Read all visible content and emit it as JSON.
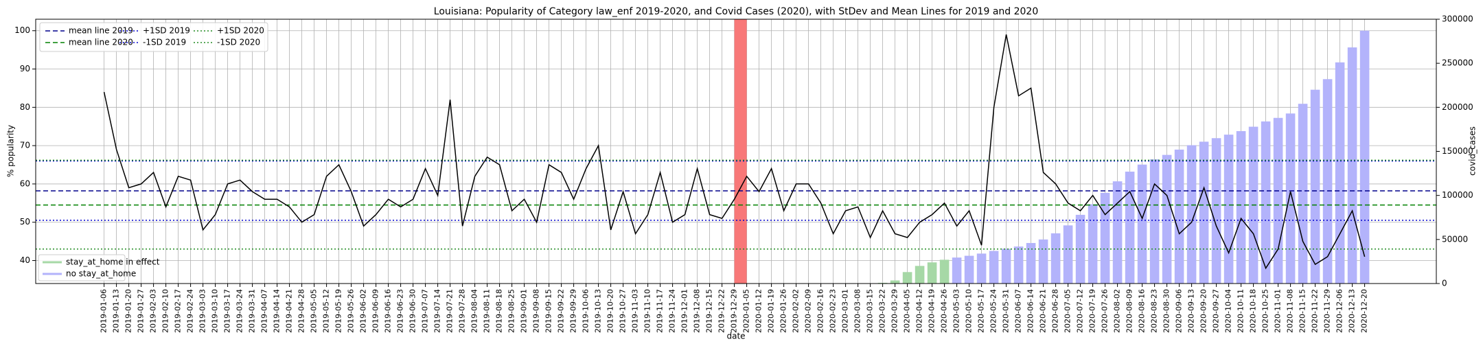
{
  "chart_data": {
    "type": "bar_line",
    "title": "Louisiana: Popularity of Category law_enf 2019-2020, and Covid Cases (2020), with StDev and Mean Lines for 2019 and 2020",
    "xlabel": "date",
    "ylabel": "% popularity",
    "y2label": "covid_cases",
    "grid": true,
    "categories": [
      "2019-01-06",
      "2019-01-13",
      "2019-01-20",
      "2019-01-27",
      "2019-02-03",
      "2019-02-10",
      "2019-02-17",
      "2019-02-24",
      "2019-03-03",
      "2019-03-10",
      "2019-03-17",
      "2019-03-24",
      "2019-03-31",
      "2019-04-07",
      "2019-04-14",
      "2019-04-21",
      "2019-04-28",
      "2019-05-05",
      "2019-05-12",
      "2019-05-19",
      "2019-05-26",
      "2019-06-02",
      "2019-06-09",
      "2019-06-16",
      "2019-06-23",
      "2019-06-30",
      "2019-07-07",
      "2019-07-14",
      "2019-07-21",
      "2019-07-28",
      "2019-08-04",
      "2019-08-11",
      "2019-08-18",
      "2019-08-25",
      "2019-09-01",
      "2019-09-08",
      "2019-09-15",
      "2019-09-22",
      "2019-09-29",
      "2019-10-06",
      "2019-10-13",
      "2019-10-20",
      "2019-10-27",
      "2019-11-03",
      "2019-11-10",
      "2019-11-17",
      "2019-11-24",
      "2019-12-01",
      "2019-12-08",
      "2019-12-15",
      "2019-12-22",
      "2019-12-29",
      "2020-01-05",
      "2020-01-12",
      "2020-01-19",
      "2020-01-26",
      "2020-02-02",
      "2020-02-09",
      "2020-02-16",
      "2020-02-23",
      "2020-03-01",
      "2020-03-08",
      "2020-03-15",
      "2020-03-22",
      "2020-03-29",
      "2020-04-05",
      "2020-04-12",
      "2020-04-19",
      "2020-04-26",
      "2020-05-03",
      "2020-05-10",
      "2020-05-17",
      "2020-05-24",
      "2020-05-31",
      "2020-06-07",
      "2020-06-14",
      "2020-06-21",
      "2020-06-28",
      "2020-07-05",
      "2020-07-12",
      "2020-07-19",
      "2020-07-26",
      "2020-08-02",
      "2020-08-09",
      "2020-08-16",
      "2020-08-23",
      "2020-08-30",
      "2020-09-06",
      "2020-09-13",
      "2020-09-20",
      "2020-09-27",
      "2020-10-04",
      "2020-10-11",
      "2020-10-18",
      "2020-10-25",
      "2020-11-01",
      "2020-11-08",
      "2020-11-15",
      "2020-11-22",
      "2020-11-29",
      "2020-12-06",
      "2020-12-13",
      "2020-12-20"
    ],
    "line": {
      "color": "#000000",
      "values": [
        84,
        69,
        59,
        60,
        63,
        54,
        62,
        61,
        48,
        52,
        60,
        61,
        58,
        56,
        56,
        54,
        50,
        52,
        62,
        65,
        58,
        49,
        52,
        56,
        54,
        56,
        64,
        57,
        82,
        49,
        62,
        67,
        65,
        53,
        56,
        50,
        65,
        63,
        56,
        64,
        70,
        48,
        58,
        47,
        52,
        63,
        50,
        52,
        64,
        52,
        51,
        56,
        62,
        58,
        64,
        53,
        60,
        60,
        55,
        47,
        53,
        54,
        46,
        53,
        47,
        46,
        50,
        52,
        55,
        49,
        53,
        44,
        80,
        99,
        83,
        85,
        63,
        60,
        55,
        53,
        57,
        52,
        55,
        58,
        51,
        60,
        57,
        47,
        50,
        59,
        49,
        42,
        51,
        47,
        38,
        43,
        58,
        45,
        39,
        41,
        47,
        53,
        41
      ]
    },
    "series": [
      {
        "name": "stay_at_home in effect",
        "color": "#a6d8a6",
        "axis": "y2",
        "values": [
          null,
          null,
          null,
          null,
          null,
          null,
          null,
          null,
          null,
          null,
          null,
          null,
          null,
          null,
          null,
          null,
          null,
          null,
          null,
          null,
          null,
          null,
          null,
          null,
          null,
          null,
          null,
          null,
          null,
          null,
          null,
          null,
          null,
          null,
          null,
          null,
          null,
          null,
          null,
          null,
          null,
          null,
          null,
          null,
          null,
          null,
          null,
          null,
          null,
          null,
          null,
          null,
          null,
          null,
          null,
          null,
          null,
          null,
          null,
          null,
          null,
          null,
          null,
          800,
          3500,
          13000,
          20000,
          24000,
          27000,
          null,
          null,
          null,
          null,
          null,
          null,
          null,
          null,
          null,
          null,
          null,
          null,
          null,
          null,
          null,
          null,
          null,
          null,
          null,
          null,
          null,
          null,
          null,
          null,
          null,
          null,
          null,
          null,
          null,
          null,
          null,
          null,
          null,
          null
        ]
      },
      {
        "name": "no stay_at_home",
        "color": "#b3b3fb",
        "axis": "y2",
        "values": [
          null,
          null,
          null,
          null,
          null,
          null,
          null,
          null,
          null,
          null,
          null,
          null,
          null,
          null,
          null,
          null,
          null,
          null,
          null,
          null,
          null,
          null,
          null,
          null,
          null,
          null,
          null,
          null,
          null,
          null,
          null,
          null,
          null,
          null,
          null,
          null,
          null,
          null,
          null,
          null,
          null,
          null,
          null,
          null,
          null,
          null,
          null,
          null,
          null,
          null,
          null,
          null,
          null,
          null,
          null,
          null,
          null,
          null,
          null,
          null,
          null,
          null,
          null,
          null,
          null,
          null,
          null,
          null,
          null,
          29500,
          31500,
          34000,
          37000,
          39500,
          42000,
          46000,
          50000,
          57000,
          66000,
          78000,
          90000,
          103000,
          116000,
          127000,
          135000,
          141000,
          146000,
          152000,
          157000,
          161000,
          165000,
          169000,
          173000,
          178000,
          184000,
          188000,
          193000,
          204000,
          220000,
          232000,
          251000,
          268000,
          287000
        ]
      }
    ],
    "hlines": [
      {
        "name": "mean line 2019",
        "value": 58.2,
        "color": "#00008b",
        "style": "dashed"
      },
      {
        "name": "mean line 2020",
        "value": 54.5,
        "color": "#008000",
        "style": "dashed"
      },
      {
        "name": "+1SD 2019",
        "value": 66.0,
        "color": "#0000cd",
        "style": "dotted"
      },
      {
        "name": "-1SD 2019",
        "value": 50.5,
        "color": "#0000cd",
        "style": "dotted"
      },
      {
        "name": "+1SD 2020",
        "value": 66.2,
        "color": "#228b22",
        "style": "dotted"
      },
      {
        "name": "-1SD 2020",
        "value": 43.0,
        "color": "#228b22",
        "style": "dotted"
      }
    ],
    "highlight": {
      "start": "2019-12-29",
      "end": "2020-01-05",
      "color": "#f87878"
    },
    "ylim": [
      34,
      103
    ],
    "yticks": [
      40,
      50,
      60,
      70,
      80,
      90,
      100
    ],
    "y2lim": [
      0,
      300000
    ],
    "y2ticks": [
      0,
      50000,
      100000,
      150000,
      200000,
      250000,
      300000
    ],
    "legend": "upper left",
    "bar_legend": "lower left"
  }
}
